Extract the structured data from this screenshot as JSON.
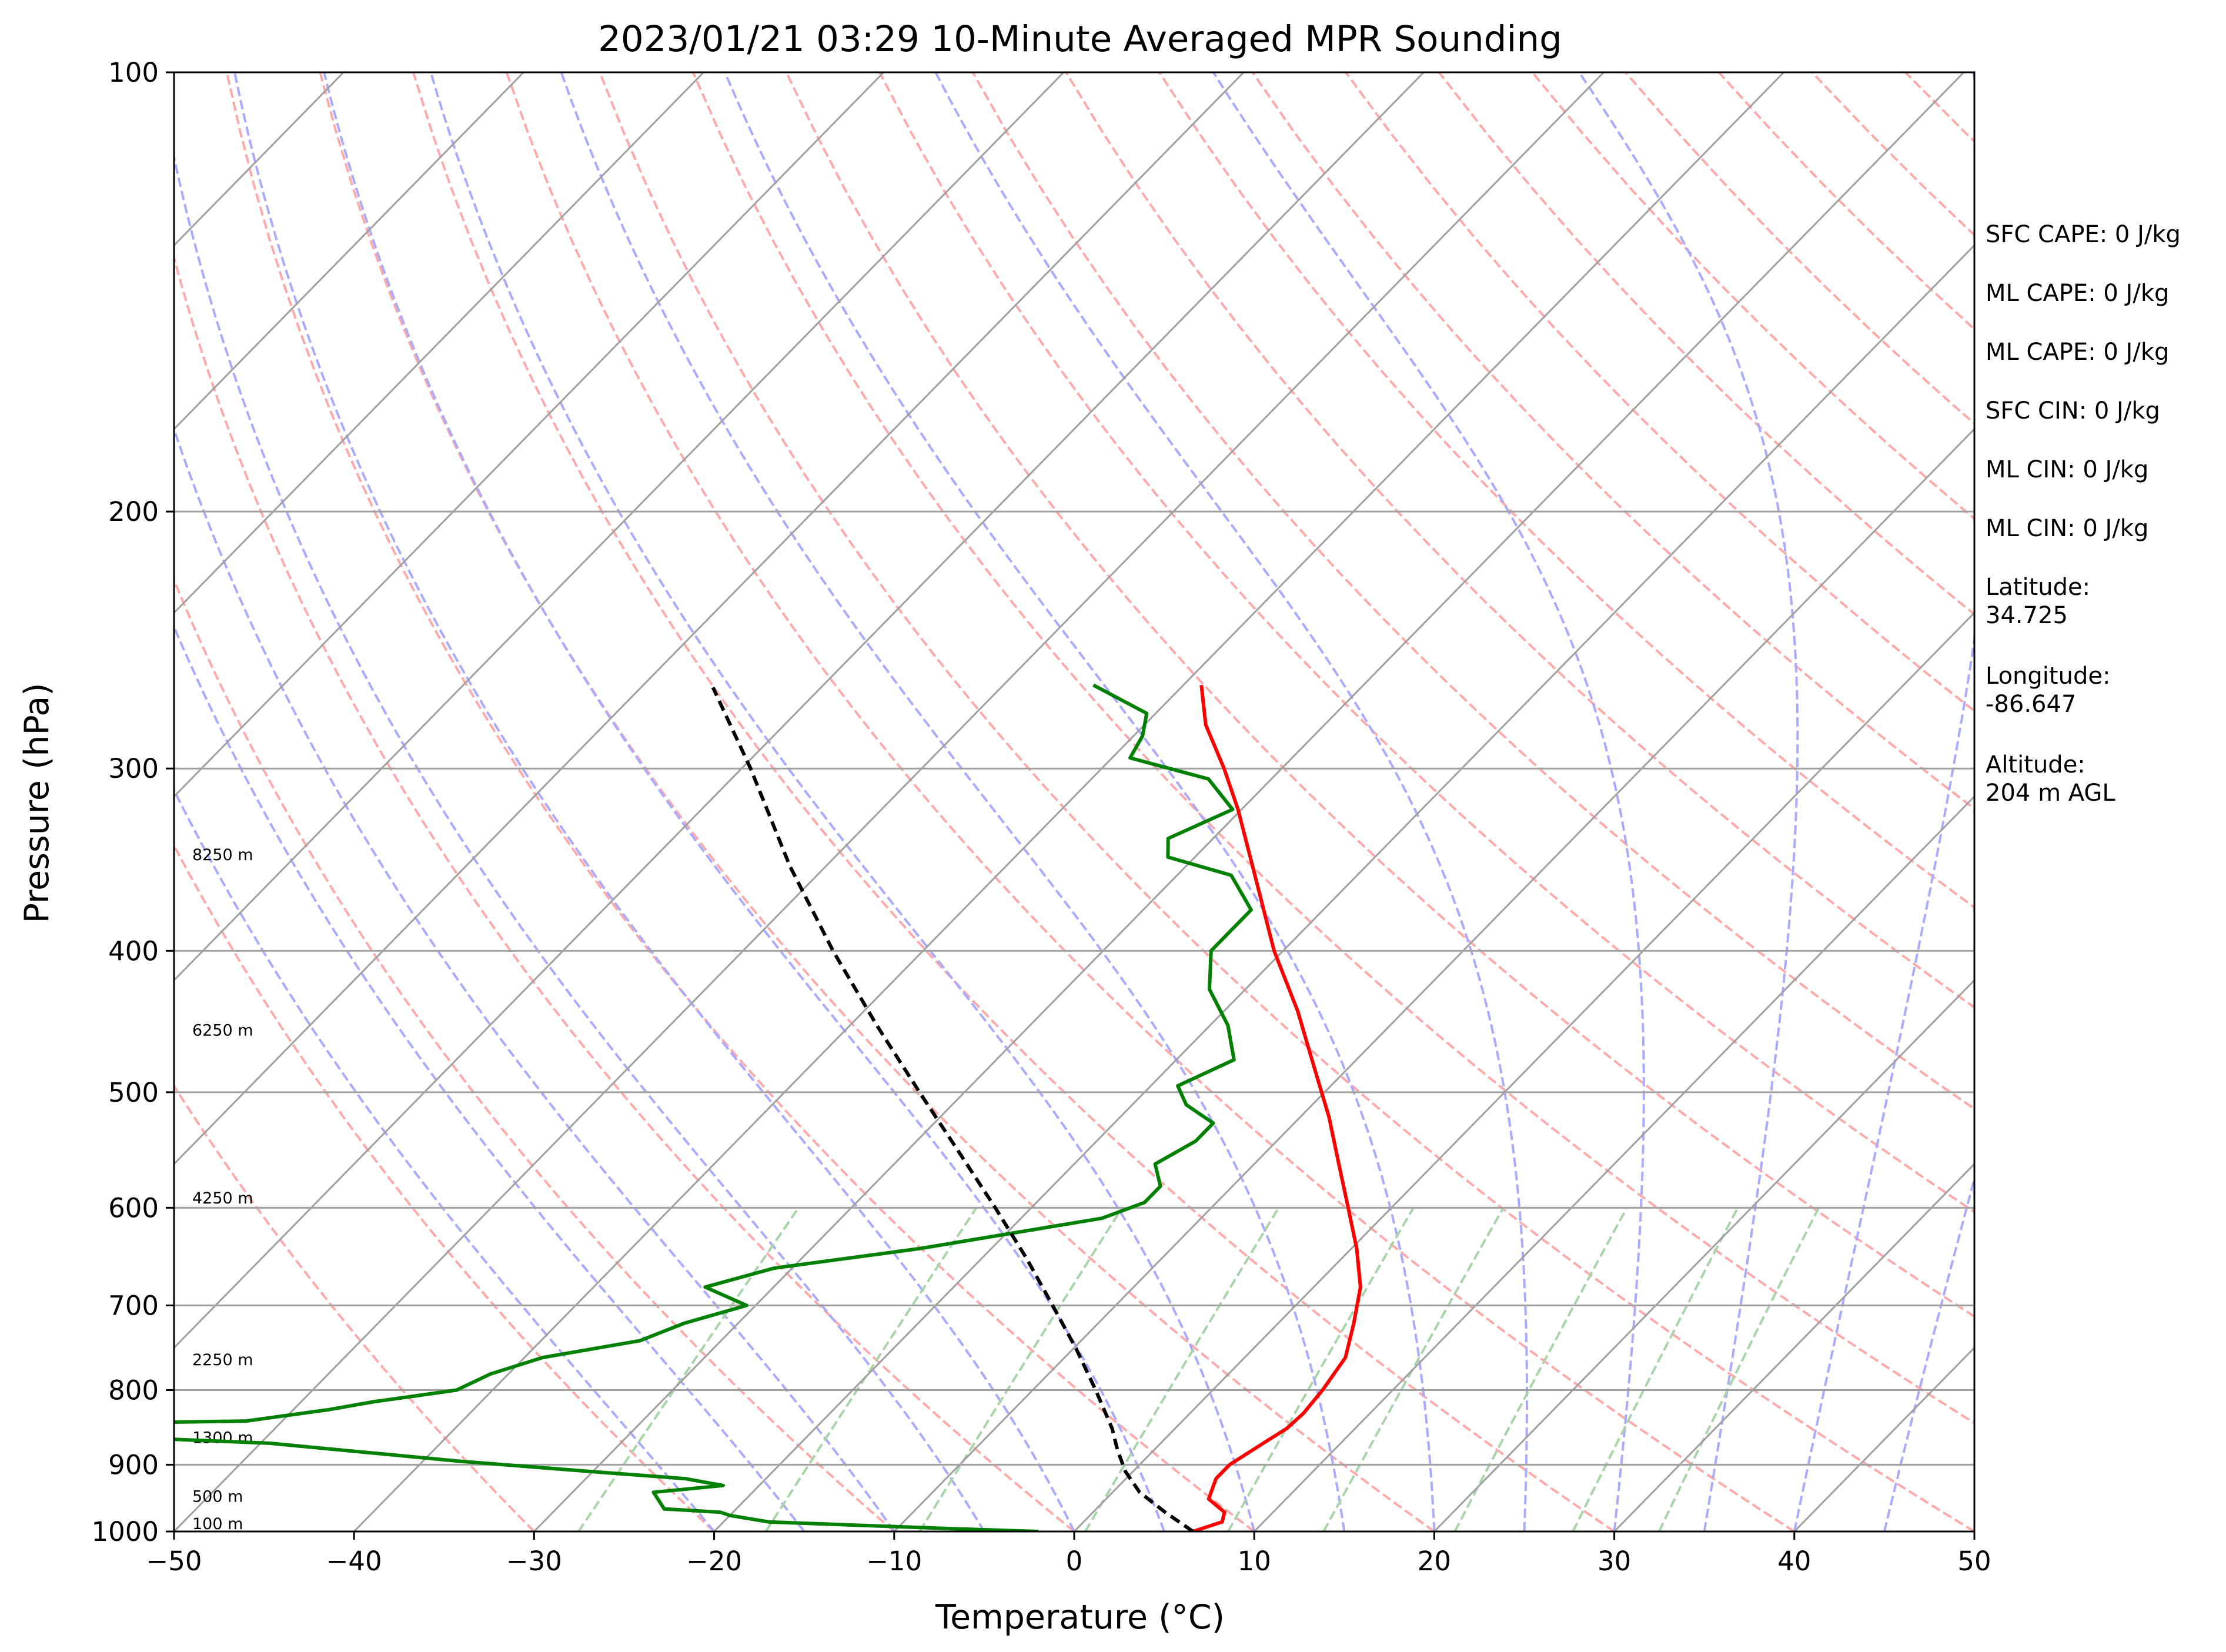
{
  "chart_data": {
    "type": "line",
    "subtype": "skew-t log-p sounding",
    "title": "2023/01/21 03:29 10-Minute Averaged MPR Sounding",
    "xlabel": "Temperature (°C)",
    "ylabel": "Pressure (hPa)",
    "xlim": [
      -50,
      50
    ],
    "ylim": [
      1000,
      100
    ],
    "yscale": "log",
    "xticks": [
      -50,
      -40,
      -30,
      -20,
      -10,
      0,
      10,
      20,
      30,
      40,
      50
    ],
    "xtick_labels": [
      "−50",
      "−40",
      "−30",
      "−20",
      "−10",
      "0",
      "10",
      "20",
      "30",
      "40",
      "50"
    ],
    "yticks": [
      1000,
      900,
      800,
      700,
      600,
      500,
      400,
      300,
      200,
      100
    ],
    "ytick_labels": [
      "1000",
      "900",
      "800",
      "700",
      "600",
      "500",
      "400",
      "300",
      "200",
      "100"
    ],
    "grid": true,
    "series": [
      {
        "role": "temperature",
        "color": "#ff0000",
        "style": "solid",
        "points": [
          [
            1000,
            6.6
          ],
          [
            985,
            7.7
          ],
          [
            970,
            7.3
          ],
          [
            950,
            5.7
          ],
          [
            920,
            5.0
          ],
          [
            900,
            5.0
          ],
          [
            870,
            5.7
          ],
          [
            850,
            6.2
          ],
          [
            830,
            6.3
          ],
          [
            800,
            6.1
          ],
          [
            760,
            5.6
          ],
          [
            720,
            4.2
          ],
          [
            680,
            2.6
          ],
          [
            640,
            0.3
          ],
          [
            600,
            -2.4
          ],
          [
            560,
            -5.3
          ],
          [
            520,
            -8.4
          ],
          [
            480,
            -12.0
          ],
          [
            440,
            -15.9
          ],
          [
            400,
            -20.5
          ],
          [
            350,
            -26.3
          ],
          [
            320,
            -30.2
          ],
          [
            300,
            -33.2
          ],
          [
            280,
            -36.6
          ],
          [
            263,
            -39.0
          ]
        ]
      },
      {
        "role": "dewpoint",
        "color": "#008000",
        "style": "solid",
        "points": [
          [
            1000,
            -2.0
          ],
          [
            995,
            -7.5
          ],
          [
            990,
            -12.5
          ],
          [
            985,
            -17.5
          ],
          [
            975,
            -20.0
          ],
          [
            970,
            -20.7
          ],
          [
            965,
            -24.0
          ],
          [
            940,
            -25.5
          ],
          [
            930,
            -22.0
          ],
          [
            920,
            -24.5
          ],
          [
            910,
            -30.0
          ],
          [
            895,
            -38.0
          ],
          [
            870,
            -49.5
          ],
          [
            855,
            -65.0
          ],
          [
            850,
            -78.0
          ],
          [
            840,
            -52.0
          ],
          [
            825,
            -48.0
          ],
          [
            815,
            -46.0
          ],
          [
            800,
            -42.0
          ],
          [
            780,
            -41.0
          ],
          [
            760,
            -39.0
          ],
          [
            740,
            -34.5
          ],
          [
            720,
            -33.0
          ],
          [
            700,
            -30.5
          ],
          [
            680,
            -33.8
          ],
          [
            660,
            -31.0
          ],
          [
            640,
            -24.0
          ],
          [
            610,
            -15.5
          ],
          [
            595,
            -14.0
          ],
          [
            580,
            -14.0
          ],
          [
            560,
            -15.5
          ],
          [
            540,
            -14.5
          ],
          [
            525,
            -14.5
          ],
          [
            510,
            -17.0
          ],
          [
            495,
            -18.5
          ],
          [
            475,
            -16.8
          ],
          [
            450,
            -19.0
          ],
          [
            425,
            -22.0
          ],
          [
            400,
            -24.0
          ],
          [
            390,
            -24.0
          ],
          [
            375,
            -24.0
          ],
          [
            355,
            -27.0
          ],
          [
            345,
            -31.5
          ],
          [
            335,
            -32.5
          ],
          [
            320,
            -30.5
          ],
          [
            305,
            -33.5
          ],
          [
            295,
            -39.0
          ],
          [
            285,
            -39.5
          ],
          [
            275,
            -40.5
          ],
          [
            263,
            -45.0
          ]
        ]
      },
      {
        "role": "parcel",
        "color": "#000000",
        "style": "dashed",
        "points": [
          [
            1000,
            6.6
          ],
          [
            970,
            4.0
          ],
          [
            940,
            1.5
          ],
          [
            910,
            -0.4
          ],
          [
            880,
            -2.0
          ],
          [
            850,
            -3.5
          ],
          [
            800,
            -6.5
          ],
          [
            750,
            -9.8
          ],
          [
            700,
            -13.5
          ],
          [
            650,
            -17.5
          ],
          [
            600,
            -22.0
          ],
          [
            550,
            -27.0
          ],
          [
            500,
            -32.5
          ],
          [
            450,
            -38.5
          ],
          [
            400,
            -45.0
          ],
          [
            350,
            -52.0
          ],
          [
            300,
            -59.5
          ],
          [
            264,
            -66.0
          ]
        ]
      }
    ],
    "height_labels": [
      {
        "pressure": 1000,
        "text": "100 m"
      },
      {
        "pressure": 958,
        "text": "500 m"
      },
      {
        "pressure": 873,
        "text": "1300 m"
      },
      {
        "pressure": 772,
        "text": "2250 m"
      },
      {
        "pressure": 598,
        "text": "4250 m"
      },
      {
        "pressure": 459,
        "text": "6250 m"
      },
      {
        "pressure": 348,
        "text": "8250 m"
      }
    ],
    "annotations": [
      [
        "SFC CAPE: 0 J/kg"
      ],
      [
        "ML CAPE: 0 J/kg"
      ],
      [
        "ML CAPE: 0 J/kg"
      ],
      [
        "SFC CIN: 0 J/kg"
      ],
      [
        "ML CIN: 0 J/kg"
      ],
      [
        "ML CIN: 0 J/kg"
      ],
      [
        "Latitude:",
        "34.725"
      ],
      [
        "Longitude:",
        "-86.647"
      ],
      [
        "Altitude:",
        "204 m AGL"
      ]
    ],
    "colors": {
      "isotherm": "#a0a0a0",
      "dry_adiabat": "#ffaaaa",
      "moist_adiabat": "#aaaaff",
      "mixing_ratio": "#a8d4a8"
    }
  }
}
